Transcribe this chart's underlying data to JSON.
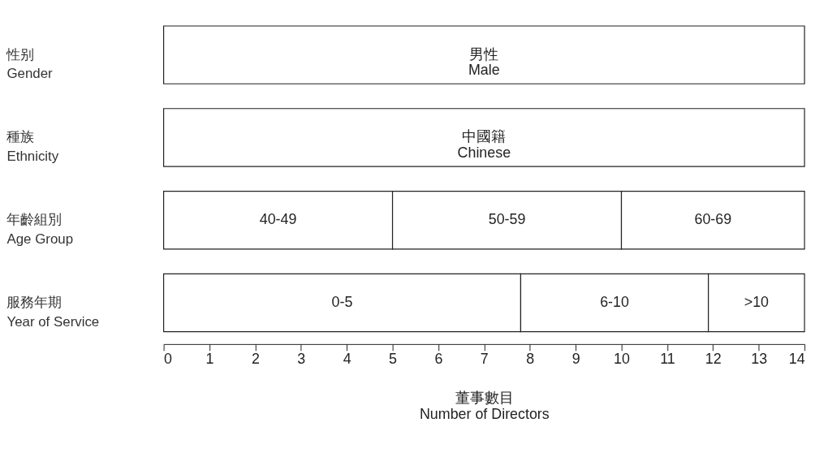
{
  "chart_data": {
    "type": "bar",
    "orientation": "horizontal",
    "stacked": true,
    "categories": [
      "性别\nGender",
      "種族\nEthnicity",
      "年齡組別\nAge Group",
      "服務年期\nYear of Service"
    ],
    "series": [
      {
        "color": "#ffffff",
        "values": [
          14,
          14,
          5,
          7.8
        ],
        "value_labels": [
          "男性\nMale",
          "中國籍\nChinese",
          "40-49",
          "0-5"
        ]
      },
      {
        "color": "#ffffff",
        "values": [
          null,
          null,
          5,
          4.1
        ],
        "value_labels": [
          null,
          null,
          "50-59",
          "6-10"
        ]
      },
      {
        "color": "#ffffff",
        "values": [
          null,
          null,
          4,
          2.1
        ],
        "value_labels": [
          null,
          null,
          "60-69",
          ">10"
        ]
      }
    ],
    "xlim": [
      0,
      14
    ],
    "xticks": [
      0,
      1,
      2,
      3,
      4,
      5,
      6,
      7,
      8,
      9,
      10,
      11,
      12,
      13,
      14
    ],
    "xlabel": "董事數目\nNumber of Directors",
    "grid": false
  }
}
